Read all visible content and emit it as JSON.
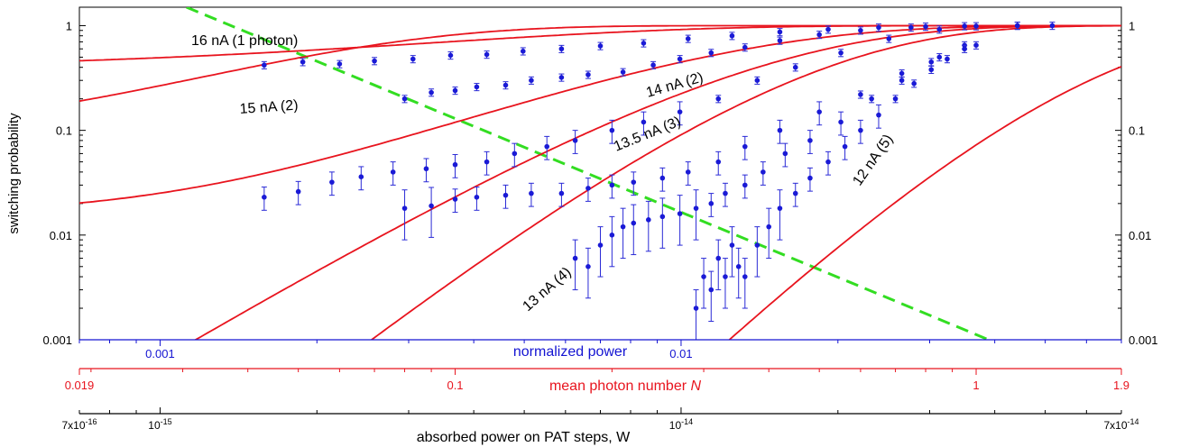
{
  "chart_data": {
    "type": "scatter",
    "ylabel": "switching probability",
    "yscale": "log",
    "ylim": [
      0.001,
      1.5
    ],
    "y_ticks": [
      {
        "v": 1,
        "label": "1"
      },
      {
        "v": 0.1,
        "label": "0.1"
      },
      {
        "v": 0.01,
        "label": "0.01"
      },
      {
        "v": 0.001,
        "label": "0.001"
      }
    ],
    "x_axes": [
      {
        "id": "power",
        "label": "absorbed power on PAT steps, W",
        "scale": "log",
        "range": [
          7e-16,
          7e-14
        ],
        "color": "#000000",
        "ticks": [
          {
            "v": 7e-16,
            "base": "7x10",
            "exp": "-16"
          },
          {
            "v": 1e-15,
            "base": "10",
            "exp": "-15"
          },
          {
            "v": 1e-14,
            "base": "10",
            "exp": "-14"
          },
          {
            "v": 7e-14,
            "base": "7x10",
            "exp": "-14"
          }
        ]
      },
      {
        "id": "photon",
        "label": "mean photon number",
        "label_italic": "N",
        "scale": "log",
        "range": [
          0.019,
          1.9
        ],
        "color": "#e8141e",
        "ticks": [
          {
            "v": 0.019,
            "label": "0.019"
          },
          {
            "v": 0.1,
            "label": "0.1"
          },
          {
            "v": 1,
            "label": "1"
          },
          {
            "v": 1.9,
            "label": "1.9"
          }
        ]
      },
      {
        "id": "normalized",
        "label": "normalized power",
        "scale": "log",
        "range": [
          0.0007,
          0.07
        ],
        "color": "#1414d2",
        "ticks": [
          {
            "v": 0.001,
            "label": "0.001"
          },
          {
            "v": 0.01,
            "label": "0.01"
          }
        ]
      }
    ],
    "fits": [
      {
        "label": "16 nA (1 photon)",
        "photons": 1,
        "p0": 0.38,
        "k": 7.5
      },
      {
        "label": "15 nA (2)",
        "photons": 2,
        "p0": 0.088,
        "k": 30
      },
      {
        "label": "14 nA (2)",
        "photons": 2,
        "p0": 0.0152,
        "k": 5.5
      },
      {
        "label": "13.5 nA (3)",
        "photons": 3,
        "p0": 0,
        "k": 6
      },
      {
        "label": "13 nA (4)",
        "photons": 4,
        "p0": 0,
        "k": 6.2
      },
      {
        "label": "12 nA (5)",
        "photons": 5,
        "p0": 0,
        "k": 2.2
      }
    ],
    "dashed_line": {
      "color": "#33dd22",
      "points": [
        [
          0.0305,
          1.5
        ],
        [
          1.057,
          0.001
        ]
      ]
    },
    "series": [
      {
        "fit": "16 nA (1 photon)",
        "x": [
          0.043,
          0.051,
          0.06,
          0.07,
          0.083,
          0.098,
          0.115,
          0.135,
          0.16,
          0.19,
          0.23,
          0.28,
          0.34,
          0.42,
          0.52,
          0.65,
          0.8,
          1.0,
          1.2,
          1.4
        ],
        "y": [
          0.42,
          0.45,
          0.43,
          0.46,
          0.48,
          0.52,
          0.53,
          0.57,
          0.6,
          0.64,
          0.68,
          0.75,
          0.8,
          0.87,
          0.92,
          0.96,
          0.98,
          0.99,
          1.0,
          1.0
        ]
      },
      {
        "fit": "15 nA (2)",
        "x": [
          0.08,
          0.09,
          0.1,
          0.11,
          0.125,
          0.14,
          0.16,
          0.18,
          0.21,
          0.24,
          0.27,
          0.31,
          0.36,
          0.42,
          0.5,
          0.6,
          0.75,
          0.95,
          1.2
        ],
        "y": [
          0.2,
          0.23,
          0.24,
          0.26,
          0.27,
          0.3,
          0.32,
          0.34,
          0.36,
          0.42,
          0.48,
          0.55,
          0.62,
          0.72,
          0.82,
          0.9,
          0.96,
          0.99,
          1.0
        ]
      },
      {
        "fit": "14 nA (2)",
        "x": [
          0.043,
          0.05,
          0.058,
          0.066,
          0.076,
          0.088,
          0.1,
          0.115,
          0.13,
          0.15,
          0.17,
          0.2,
          0.23,
          0.27,
          0.32,
          0.38,
          0.45,
          0.55,
          0.68,
          0.85
        ],
        "y": [
          0.023,
          0.026,
          0.032,
          0.036,
          0.04,
          0.043,
          0.047,
          0.05,
          0.06,
          0.07,
          0.08,
          0.1,
          0.12,
          0.15,
          0.2,
          0.3,
          0.4,
          0.55,
          0.75,
          0.92
        ]
      },
      {
        "fit": "13.5 nA (3)",
        "x": [
          0.08,
          0.09,
          0.1,
          0.11,
          0.125,
          0.14,
          0.16,
          0.18,
          0.2,
          0.22,
          0.25,
          0.28,
          0.32,
          0.36,
          0.42,
          0.5,
          0.6,
          0.72,
          0.85,
          1.0
        ],
        "y": [
          0.018,
          0.019,
          0.022,
          0.023,
          0.024,
          0.025,
          0.025,
          0.028,
          0.03,
          0.032,
          0.035,
          0.04,
          0.05,
          0.07,
          0.1,
          0.15,
          0.22,
          0.35,
          0.5,
          0.65
        ]
      },
      {
        "fit": "13 nA (4)",
        "x": [
          0.17,
          0.18,
          0.19,
          0.2,
          0.21,
          0.22,
          0.235,
          0.25,
          0.27,
          0.29,
          0.31,
          0.33,
          0.36,
          0.39,
          0.43,
          0.48,
          0.55,
          0.63,
          0.72,
          0.82,
          0.95
        ],
        "y": [
          0.006,
          0.005,
          0.008,
          0.01,
          0.012,
          0.013,
          0.014,
          0.015,
          0.016,
          0.018,
          0.02,
          0.025,
          0.03,
          0.04,
          0.06,
          0.08,
          0.12,
          0.2,
          0.3,
          0.45,
          0.65
        ]
      },
      {
        "fit": "12 nA (5)",
        "x": [
          0.29,
          0.3,
          0.31,
          0.32,
          0.33,
          0.34,
          0.35,
          0.36,
          0.38,
          0.4,
          0.42,
          0.45,
          0.48,
          0.52,
          0.56,
          0.6,
          0.65,
          0.7,
          0.76,
          0.82,
          0.88,
          0.95
        ],
        "y": [
          0.002,
          0.004,
          0.003,
          0.006,
          0.004,
          0.008,
          0.005,
          0.004,
          0.008,
          0.012,
          0.018,
          0.025,
          0.035,
          0.05,
          0.07,
          0.1,
          0.14,
          0.2,
          0.28,
          0.38,
          0.48,
          0.6
        ]
      }
    ]
  }
}
